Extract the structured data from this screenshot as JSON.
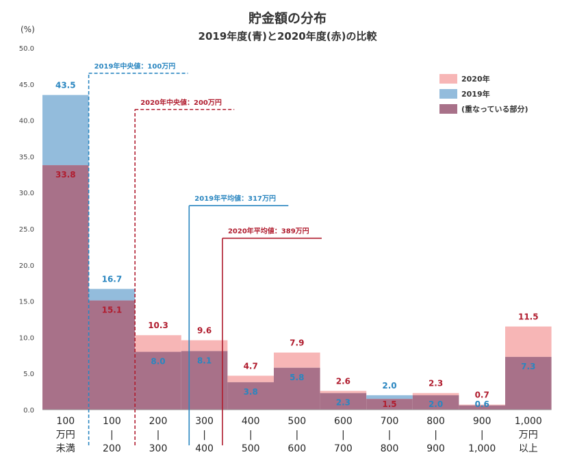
{
  "chart_data": {
    "type": "bar",
    "title": "貯金額の分布",
    "subtitle": "2019年度(青)と2020年度(赤)の比較",
    "ylabel": "(%)",
    "ylim": [
      0,
      50
    ],
    "yticks": [
      "0.0",
      "5.0",
      "10.0",
      "15.0",
      "20.0",
      "25.0",
      "30.0",
      "35.0",
      "40.0",
      "45.0",
      "50.0"
    ],
    "categories": [
      [
        "100",
        "万円",
        "未満"
      ],
      [
        "100",
        "|",
        "200"
      ],
      [
        "200",
        "|",
        "300"
      ],
      [
        "300",
        "|",
        "400"
      ],
      [
        "400",
        "|",
        "500"
      ],
      [
        "500",
        "|",
        "600"
      ],
      [
        "600",
        "|",
        "700"
      ],
      [
        "700",
        "|",
        "800"
      ],
      [
        "800",
        "|",
        "900"
      ],
      [
        "900",
        "|",
        "1,000"
      ],
      [
        "1,000",
        "万円",
        "以上"
      ]
    ],
    "series": [
      {
        "name": "2020年",
        "color": "#f7b6b6",
        "label_color": "#b01c2e",
        "values": [
          33.8,
          15.1,
          10.3,
          9.6,
          4.7,
          7.9,
          2.6,
          1.5,
          2.3,
          0.7,
          11.5
        ],
        "labels": [
          "33.8",
          "15.1",
          "10.3",
          "9.6",
          "4.7",
          "7.9",
          "2.6",
          "1.5",
          "2.3",
          "0.7",
          "11.5"
        ]
      },
      {
        "name": "2019年",
        "color": "#93bcdc",
        "label_color": "#2a86c0",
        "values": [
          43.5,
          16.7,
          8.0,
          8.1,
          3.8,
          5.8,
          2.3,
          2.0,
          2.0,
          0.6,
          7.3
        ],
        "labels": [
          "43.5",
          "16.7",
          "8.0",
          "8.1",
          "3.8",
          "5.8",
          "2.3",
          "2.0",
          "2.0",
          "0.6",
          "7.3"
        ]
      }
    ],
    "overlap": {
      "name": "(重なっている部分)",
      "color": "#a87189"
    },
    "reference_lines": [
      {
        "label": "2019年中央値：100万円",
        "x_bin": 1.0,
        "y_top": 46.5,
        "style": "dashed",
        "color": "#2a86c0"
      },
      {
        "label": "2020年中央値：200万円",
        "x_bin": 2.0,
        "y_top": 41.5,
        "style": "dashed",
        "color": "#b01c2e"
      },
      {
        "label": "2019年平均値：317万円",
        "x_bin": 3.17,
        "y_top": 28.2,
        "style": "solid",
        "color": "#2a86c0"
      },
      {
        "label": "2020年平均値：389万円",
        "x_bin": 3.89,
        "y_top": 23.7,
        "style": "solid",
        "color": "#b01c2e"
      }
    ],
    "legend": "top-right",
    "grid": false
  }
}
